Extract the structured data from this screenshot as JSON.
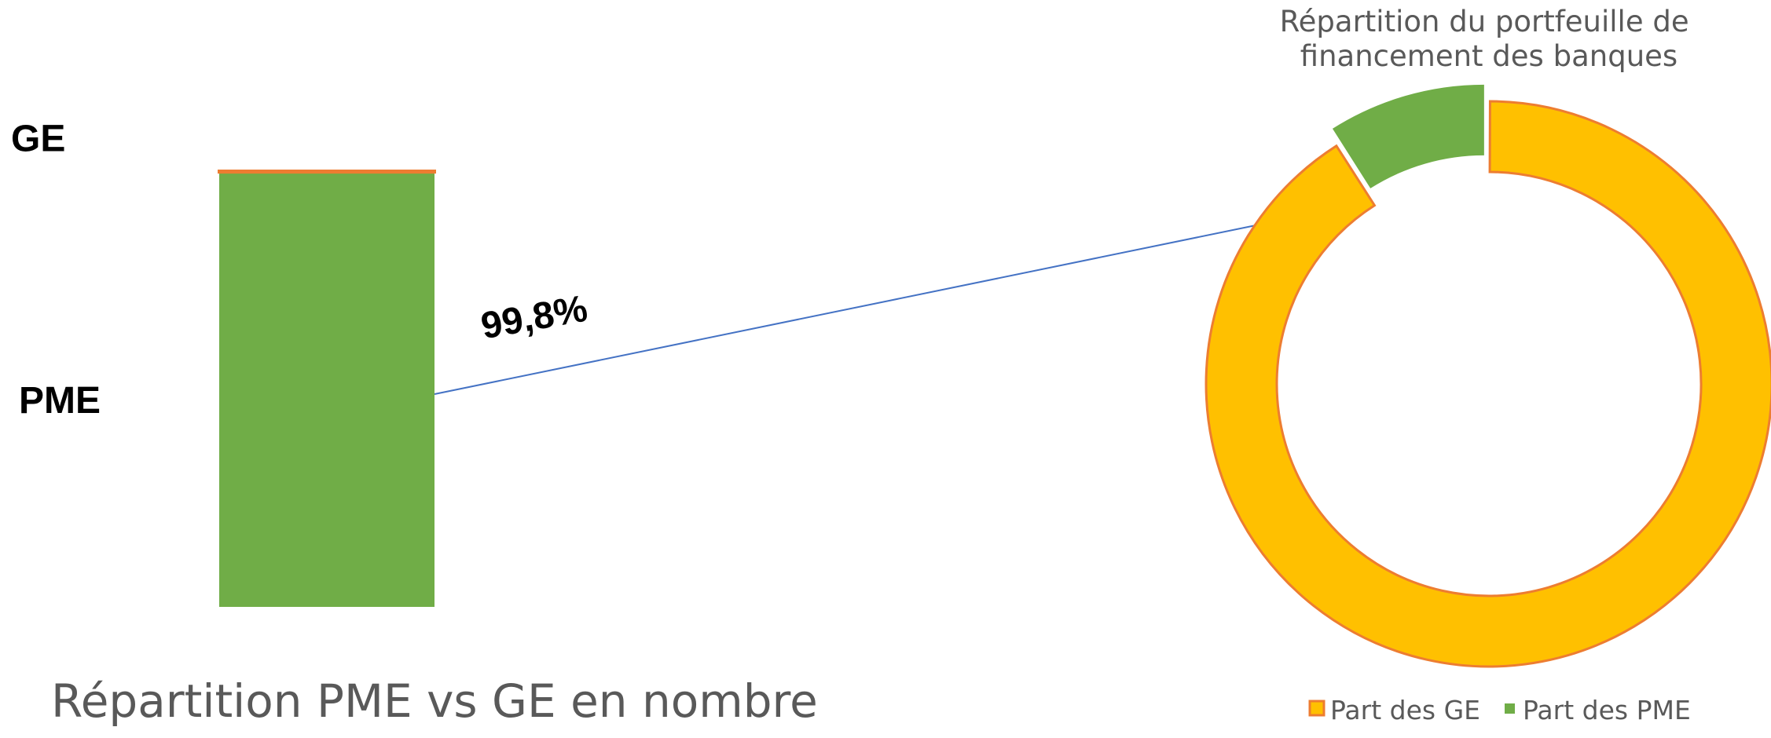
{
  "chart_data": [
    {
      "type": "bar",
      "stacked": true,
      "title": "Répartition PME vs GE en nombre",
      "ylim": [
        0,
        100
      ],
      "series": [
        {
          "name": "PME",
          "color": "#70ad47",
          "values": [
            99.8
          ],
          "value_labels": [
            "99,8%"
          ]
        },
        {
          "name": "GE",
          "color": "#ffc000",
          "edge_color": "#ed7d31",
          "values": [
            0.2
          ]
        }
      ]
    },
    {
      "type": "donut",
      "title": "Répartition du portfeuille de financement des banques",
      "legend": "bottom",
      "categories": [
        "Part des GE",
        "Part des PME"
      ],
      "values": [
        91,
        9
      ],
      "colors": [
        "#ffc000",
        "#70ad47"
      ],
      "edge_color": "#ed7d31"
    }
  ]
}
